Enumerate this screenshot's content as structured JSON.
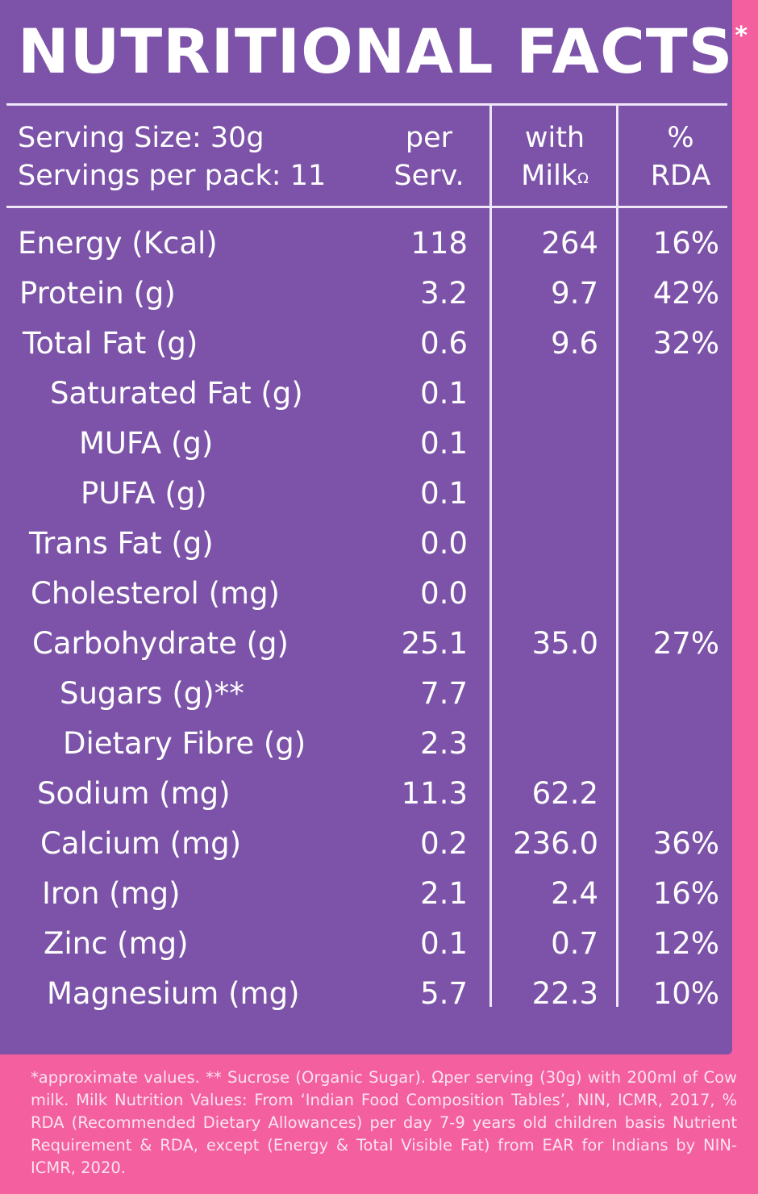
{
  "title": "NUTRITIONAL FACTS",
  "title_mark": "*",
  "header": {
    "serving_size": "Serving Size: 30g",
    "servings_per_pack": "Servings per pack: 11",
    "col_per_line1": "per",
    "col_per_line2": "Serv.",
    "col_milk_line1": "with",
    "col_milk_line2": "Milk",
    "col_milk_mark": "Ω",
    "col_rda_line1": "%",
    "col_rda_line2": "RDA"
  },
  "rows": [
    {
      "label": "Energy (Kcal)",
      "per": "118",
      "milk": "264",
      "rda": "16%"
    },
    {
      "label": "Protein (g)",
      "per": "3.2",
      "milk": "9.7",
      "rda": "42%"
    },
    {
      "label": "Total Fat (g)",
      "per": "0.6",
      "milk": "9.6",
      "rda": "32%"
    },
    {
      "label": "Saturated Fat (g)",
      "per": "0.1",
      "milk": "",
      "rda": ""
    },
    {
      "label": "MUFA (g)",
      "per": "0.1",
      "milk": "",
      "rda": ""
    },
    {
      "label": "PUFA (g)",
      "per": "0.1",
      "milk": "",
      "rda": ""
    },
    {
      "label": "Trans Fat (g)",
      "per": "0.0",
      "milk": "",
      "rda": ""
    },
    {
      "label": "Cholesterol (mg)",
      "per": "0.0",
      "milk": "",
      "rda": ""
    },
    {
      "label": "Carbohydrate (g)",
      "per": "25.1",
      "milk": "35.0",
      "rda": "27%"
    },
    {
      "label": "Sugars (g)**",
      "per": "7.7",
      "milk": "",
      "rda": ""
    },
    {
      "label": "Dietary Fibre (g)",
      "per": "2.3",
      "milk": "",
      "rda": ""
    },
    {
      "label": "Sodium (mg)",
      "per": "11.3",
      "milk": "62.2",
      "rda": ""
    },
    {
      "label": "Calcium (mg)",
      "per": "0.2",
      "milk": "236.0",
      "rda": "36%"
    },
    {
      "label": "Iron (mg)",
      "per": "2.1",
      "milk": "2.4",
      "rda": "16%"
    },
    {
      "label": "Zinc (mg)",
      "per": "0.1",
      "milk": "0.7",
      "rda": "12%"
    },
    {
      "label": "Magnesium (mg)",
      "per": "5.7",
      "milk": "22.3",
      "rda": "10%"
    }
  ],
  "footnote": "*approximate values. ** Sucrose (Organic Sugar). Ωper serving (30g) with 200ml of Cow milk. Milk Nutrition Values: From ‘Indian Food Composition Tables’, NIN, ICMR, 2017, % RDA (Recommended Dietary Allowances) per day 7-9 years old children basis Nutrient Requirement & RDA, except (Energy & Total Visible Fat) from EAR for Indians by NIN-ICMR, 2020.",
  "colors": {
    "panel": "#7c53a8",
    "background": "#f35f9f",
    "text": "#ffffff"
  }
}
